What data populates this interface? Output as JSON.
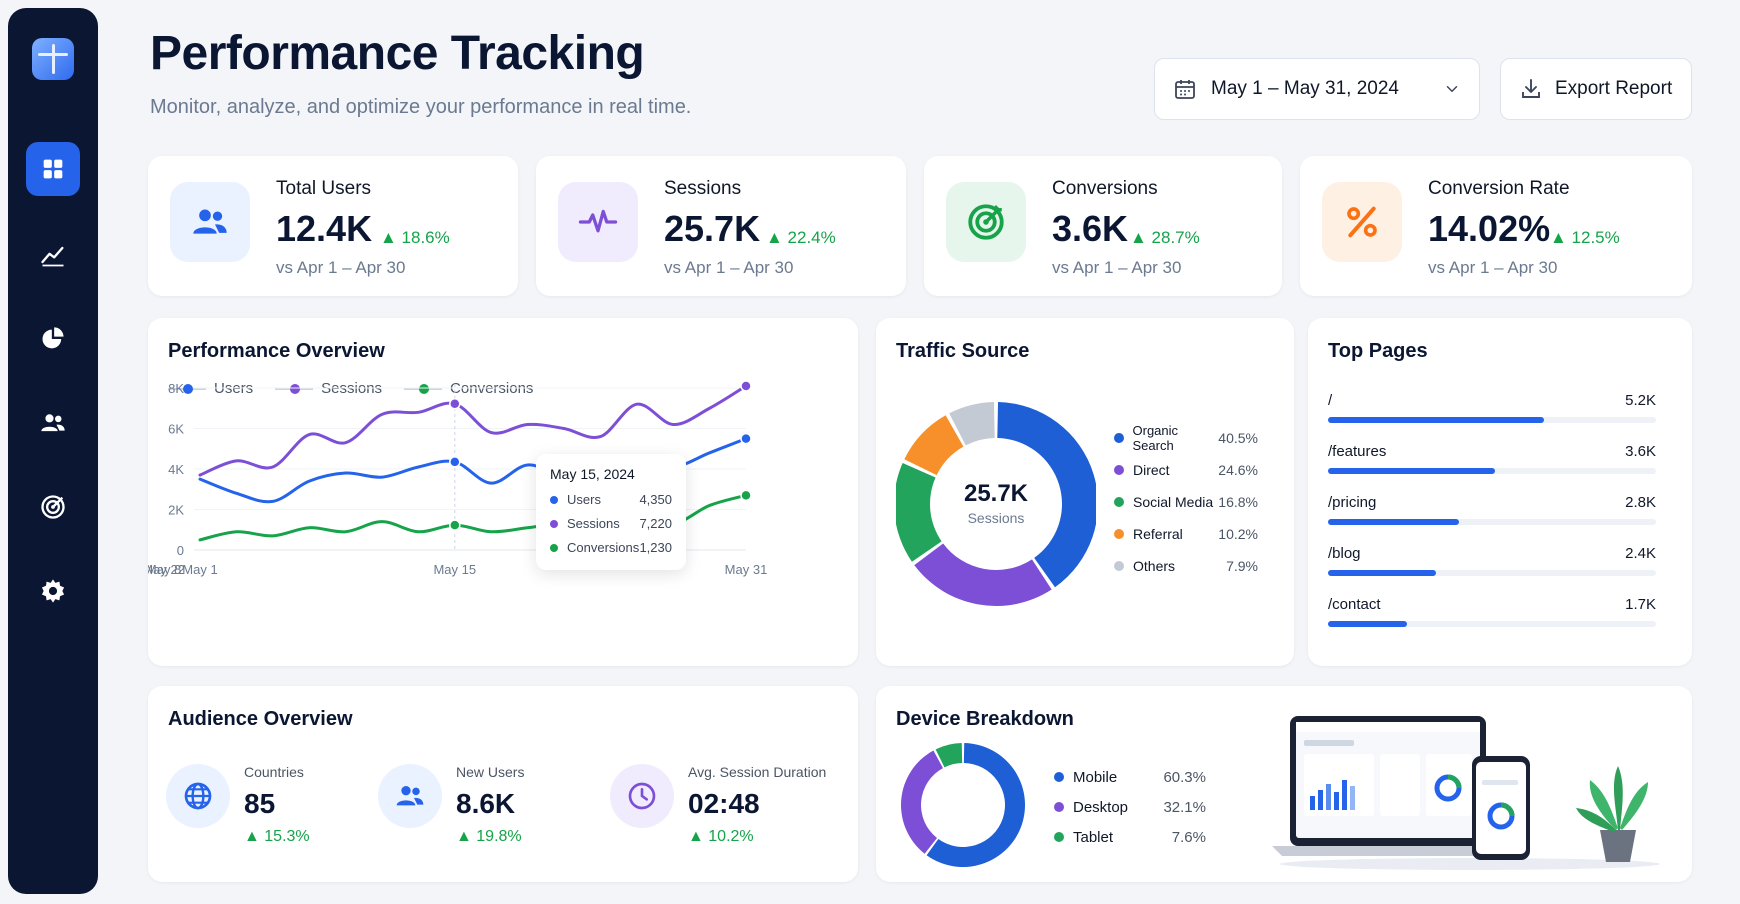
{
  "header": {
    "title": "Performance Tracking",
    "subtitle": "Monitor, analyze, and optimize your performance in real time.",
    "date_range": "May 1 – May 31, 2024",
    "export_label": "Export Report"
  },
  "sidebar": {
    "items": [
      {
        "icon": "grid-icon",
        "active": true
      },
      {
        "icon": "trend-icon",
        "active": false
      },
      {
        "icon": "pie-icon",
        "active": false
      },
      {
        "icon": "users-icon",
        "active": false
      },
      {
        "icon": "target-icon",
        "active": false
      },
      {
        "icon": "gear-icon",
        "active": false
      }
    ]
  },
  "kpis": [
    {
      "label": "Total Users",
      "value": "12.4K",
      "delta": "▲ 18.6%",
      "compare": "vs Apr 1 – Apr 30",
      "icon": "users-icon",
      "color": "#2563eb",
      "bg": "#eaf1ff"
    },
    {
      "label": "Sessions",
      "value": "25.7K",
      "delta": "▲ 22.4%",
      "compare": "vs Apr 1 – Apr 30",
      "icon": "pulse-icon",
      "color": "#7c4fd6",
      "bg": "#f1ecfd"
    },
    {
      "label": "Conversions",
      "value": "3.6K",
      "delta": "▲ 28.7%",
      "compare": "vs Apr 1 – Apr 30",
      "icon": "target-icon",
      "color": "#16a34a",
      "bg": "#e6f6ec"
    },
    {
      "label": "Conversion Rate",
      "value": "14.02%",
      "delta": "▲ 12.5%",
      "compare": "vs Apr 1 – Apr 30",
      "icon": "percent-icon",
      "color": "#f97316",
      "bg": "#fff0e4"
    }
  ],
  "overview": {
    "title": "Performance Overview",
    "legend": [
      "Users",
      "Sessions",
      "Conversions"
    ],
    "tooltip": {
      "date": "May 15, 2024",
      "rows": [
        {
          "label": "Users",
          "value": "4,350"
        },
        {
          "label": "Sessions",
          "value": "7,220"
        },
        {
          "label": "Conversions",
          "value": "1,230"
        }
      ]
    }
  },
  "chart_data": {
    "type": "line",
    "x": [
      "May 1",
      "May 3",
      "May 5",
      "May 7",
      "May 9",
      "May 11",
      "May 13",
      "May 15",
      "May 17",
      "May 19",
      "May 21",
      "May 23",
      "May 25",
      "May 27",
      "May 29",
      "May 31"
    ],
    "x_tick_labels": [
      "May 1",
      "May 8",
      "May 15",
      "May 22",
      "May 31"
    ],
    "y_tick_labels": [
      "0",
      "2K",
      "4K",
      "6K",
      "8K"
    ],
    "ylim": [
      0,
      8000
    ],
    "series": [
      {
        "name": "Users",
        "color": "#2563eb",
        "values": [
          3500,
          2800,
          2400,
          3400,
          3800,
          3600,
          4100,
          4350,
          3300,
          4200,
          3600,
          3700,
          4500,
          4100,
          4800,
          5500
        ]
      },
      {
        "name": "Sessions",
        "color": "#7c4fd6",
        "values": [
          3700,
          4400,
          4100,
          5700,
          5300,
          6700,
          6800,
          7220,
          5800,
          6200,
          6000,
          5600,
          7200,
          6200,
          7000,
          8100
        ]
      },
      {
        "name": "Conversions",
        "color": "#16a34a",
        "values": [
          500,
          900,
          700,
          1100,
          900,
          1400,
          900,
          1230,
          900,
          1100,
          1300,
          1000,
          1800,
          1300,
          2200,
          2700
        ]
      }
    ]
  },
  "traffic": {
    "title": "Traffic Source",
    "center_value": "25.7K",
    "center_label": "Sessions",
    "items": [
      {
        "label": "Organic Search",
        "pct": "40.5%",
        "value": 40.5,
        "color": "#1f5fd6"
      },
      {
        "label": "Direct",
        "pct": "24.6%",
        "value": 24.6,
        "color": "#7c4fd6"
      },
      {
        "label": "Social Media",
        "pct": "16.8%",
        "value": 16.8,
        "color": "#22a45d"
      },
      {
        "label": "Referral",
        "pct": "10.2%",
        "value": 10.2,
        "color": "#f7902a"
      },
      {
        "label": "Others",
        "pct": "7.9%",
        "value": 7.9,
        "color": "#c4cad4"
      }
    ]
  },
  "top_pages": {
    "title": "Top Pages",
    "rows": [
      {
        "path": "/",
        "value": "5.2K",
        "fraction": 0.66
      },
      {
        "path": "/features",
        "value": "3.6K",
        "fraction": 0.51
      },
      {
        "path": "/pricing",
        "value": "2.8K",
        "fraction": 0.4
      },
      {
        "path": "/blog",
        "value": "2.4K",
        "fraction": 0.33
      },
      {
        "path": "/contact",
        "value": "1.7K",
        "fraction": 0.24
      }
    ]
  },
  "audience": {
    "title": "Audience Overview",
    "items": [
      {
        "label": "Countries",
        "value": "85",
        "delta": "▲ 15.3%",
        "icon": "globe-icon",
        "color": "#2563eb",
        "bg": "#eaf1ff"
      },
      {
        "label": "New Users",
        "value": "8.6K",
        "delta": "▲ 19.8%",
        "icon": "users-icon",
        "color": "#2563eb",
        "bg": "#eaf1ff"
      },
      {
        "label": "Avg. Session Duration",
        "value": "02:48",
        "delta": "▲ 10.2%",
        "icon": "clock-icon",
        "color": "#7c4fd6",
        "bg": "#f1ecfd"
      }
    ]
  },
  "devices": {
    "title": "Device Breakdown",
    "items": [
      {
        "label": "Mobile",
        "pct": "60.3%",
        "value": 60.3,
        "color": "#1f5fd6"
      },
      {
        "label": "Desktop",
        "pct": "32.1%",
        "value": 32.1,
        "color": "#7c4fd6"
      },
      {
        "label": "Tablet",
        "pct": "7.6%",
        "value": 7.6,
        "color": "#22a45d"
      }
    ]
  }
}
